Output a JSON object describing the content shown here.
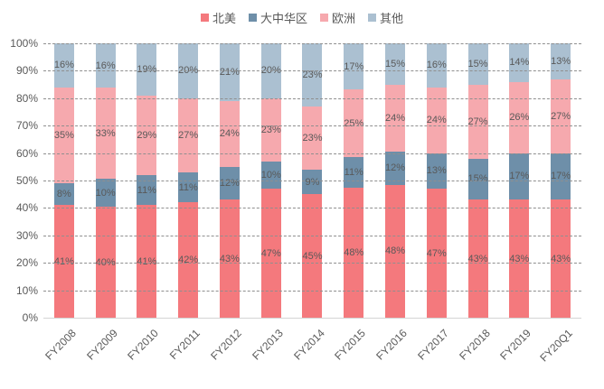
{
  "chart_data": {
    "type": "bar",
    "subtype": "stacked-100-percent-column",
    "title": "",
    "xlabel": "",
    "ylabel": "",
    "ylim": [
      0,
      100
    ],
    "grid": "horizontal-dashed",
    "legend_position": "top-center",
    "value_suffix": "%",
    "categories": [
      "FY2008",
      "FY2009",
      "FY2010",
      "FY2011",
      "FY2012",
      "FY2013",
      "FY2014",
      "FY2015",
      "FY2016",
      "FY2017",
      "FY2018",
      "FY2019",
      "FY20Q1"
    ],
    "series": [
      {
        "name": "北美",
        "color": "#f4797d",
        "values": [
          41,
          40,
          41,
          42,
          43,
          47,
          45,
          48,
          48,
          47,
          43,
          43,
          43
        ]
      },
      {
        "name": "大中华区",
        "color": "#6e8fa9",
        "values": [
          8,
          10,
          11,
          11,
          12,
          10,
          9,
          11,
          12,
          13,
          15,
          17,
          17
        ]
      },
      {
        "name": "欧洲",
        "color": "#f6a9ae",
        "values": [
          35,
          33,
          29,
          27,
          24,
          23,
          23,
          25,
          24,
          24,
          27,
          26,
          27
        ]
      },
      {
        "name": "其他",
        "color": "#abc0d1",
        "values": [
          16,
          16,
          19,
          20,
          21,
          20,
          23,
          17,
          15,
          16,
          15,
          14,
          13
        ]
      }
    ],
    "y_ticks": [
      "100%",
      "90%",
      "80%",
      "70%",
      "60%",
      "50%",
      "40%",
      "30%",
      "20%",
      "10%",
      "0%"
    ]
  },
  "colors": {
    "label_text": "#595959",
    "gridline": "#8f8f8f",
    "axis_line": "#d4d4d4",
    "background": "#ffffff"
  }
}
